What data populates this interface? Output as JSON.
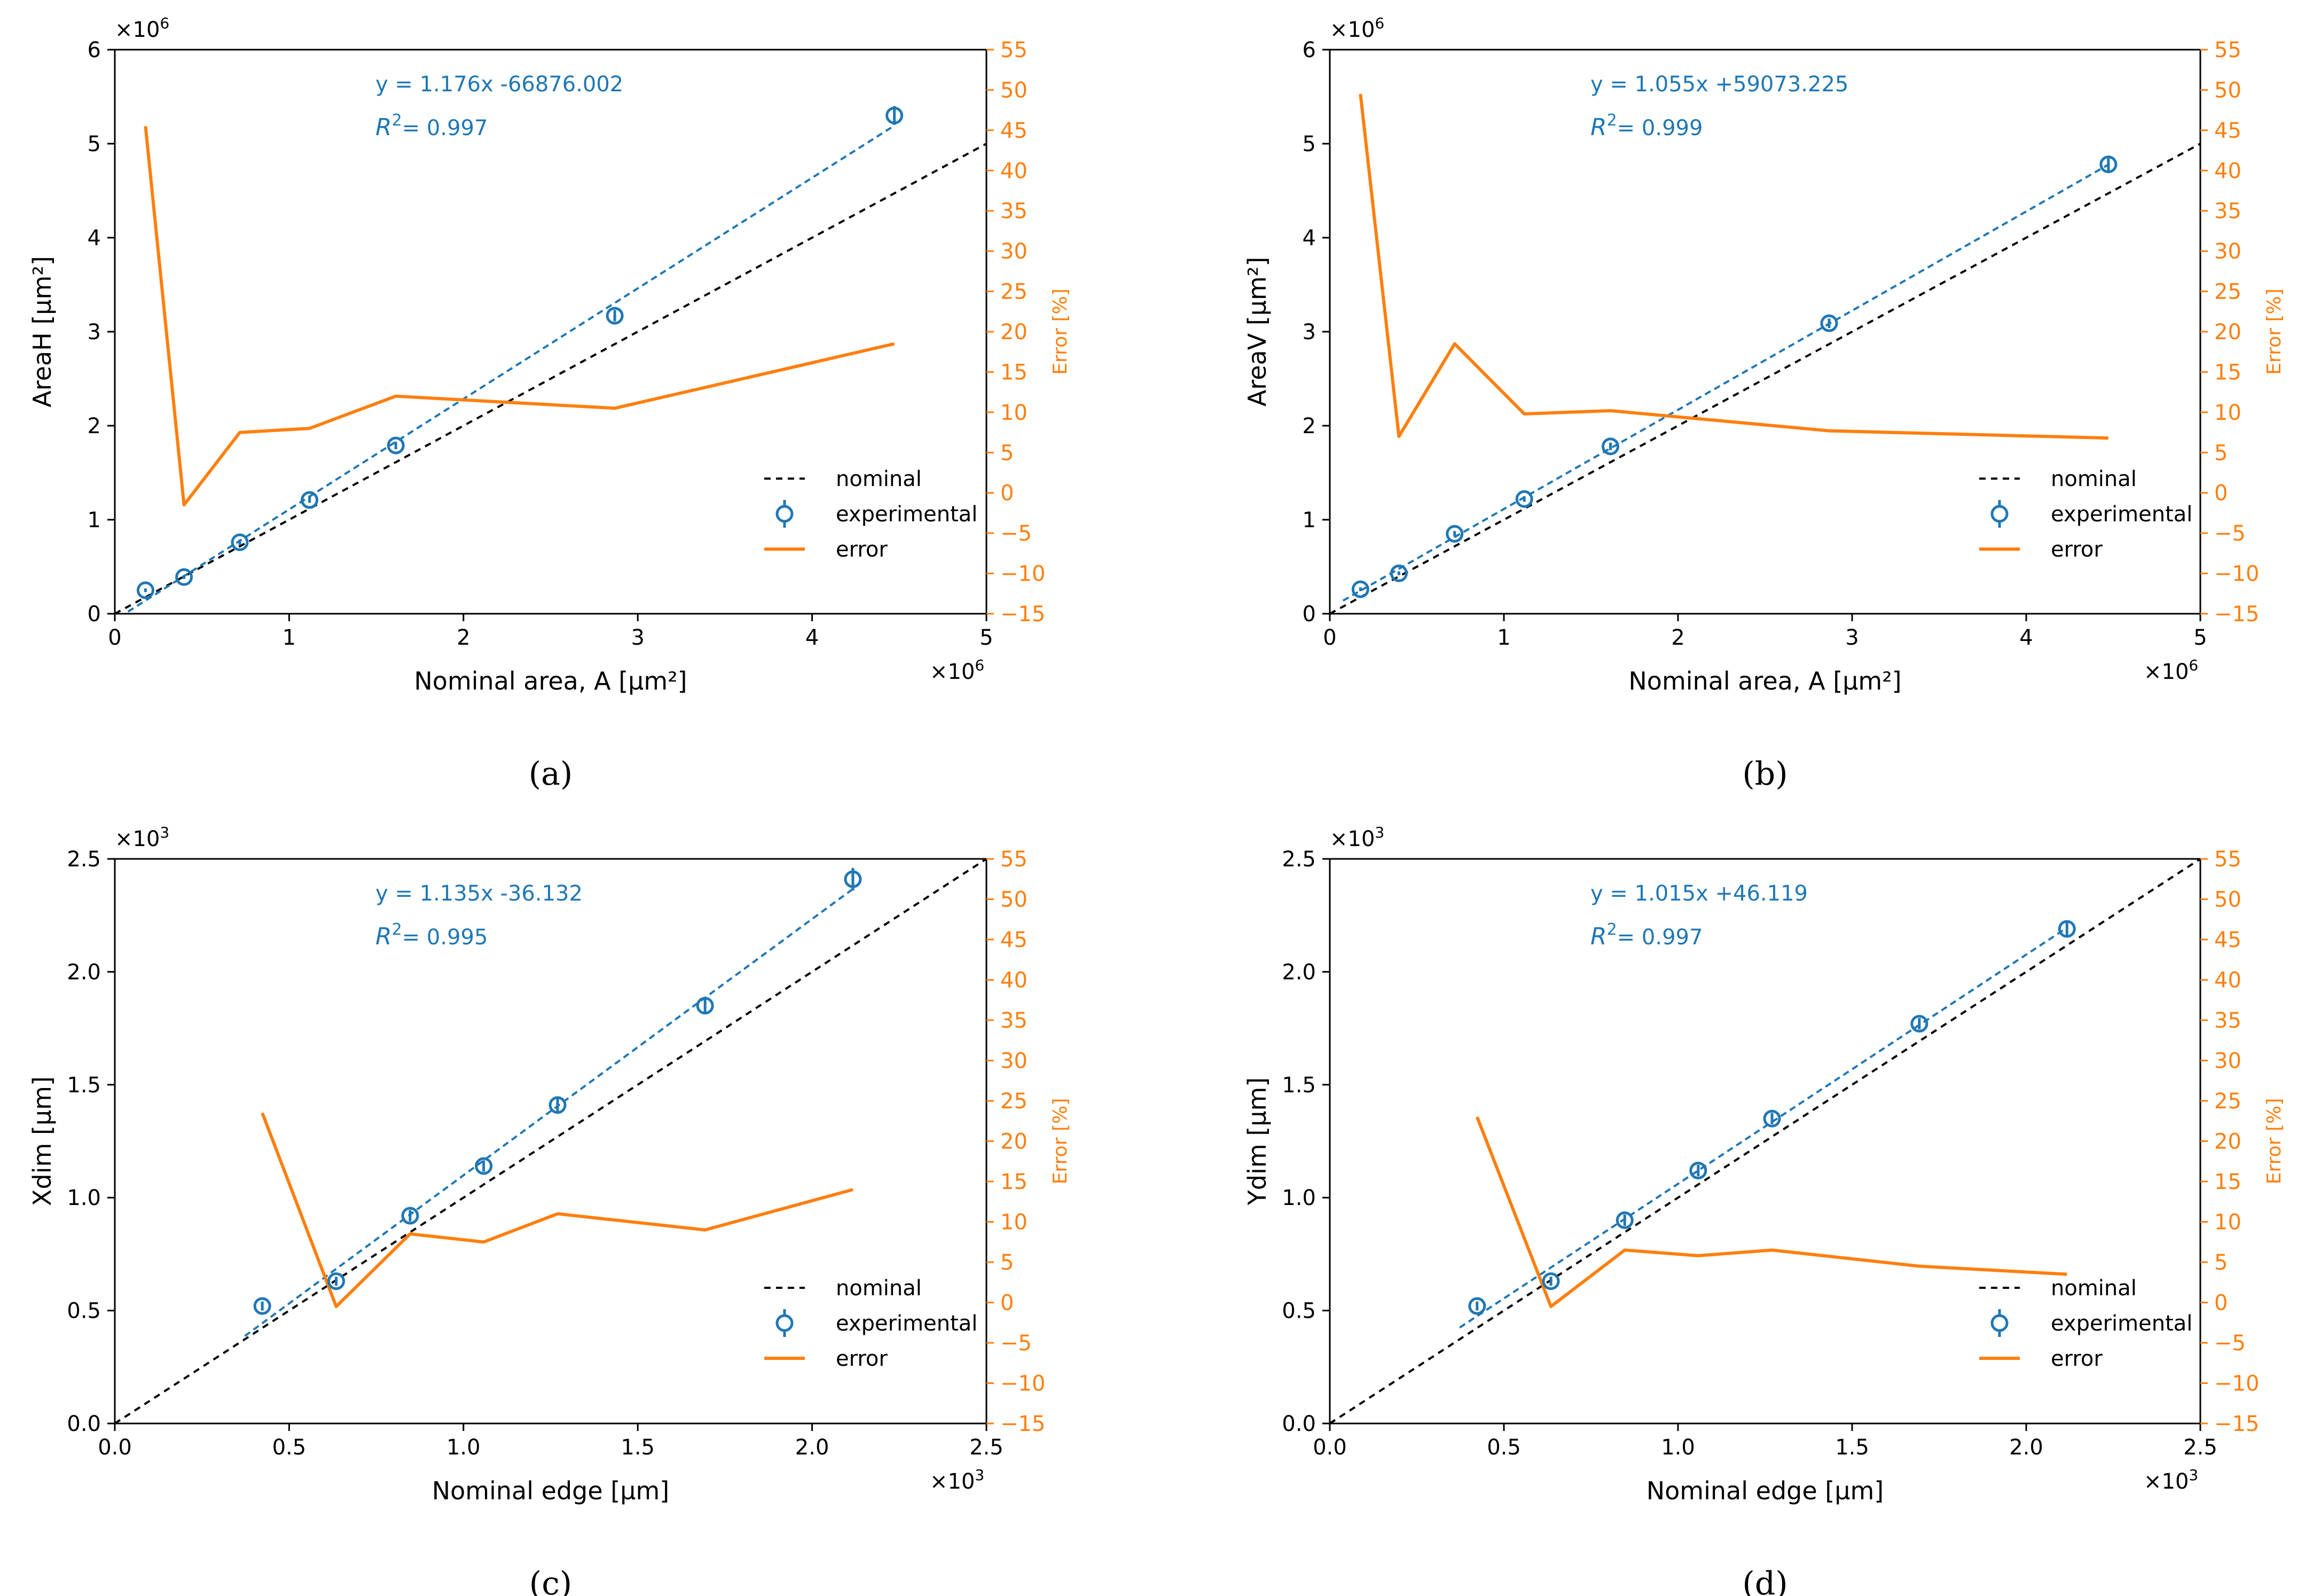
{
  "colors": {
    "nominal": "#000000",
    "experimental": "#1f77b4",
    "error": "#ff7f0e",
    "axis": "#000000"
  },
  "legend_labels": [
    "nominal",
    "experimental",
    "error"
  ],
  "chart_data": [
    {
      "type": "line",
      "caption": "(a)",
      "x_exp_label": "×10",
      "x_exp_power": "6",
      "y_exp_label": "×10",
      "y_exp_power": "6",
      "xlabel": "Nominal area, A [μm²]",
      "ylabel": "AreaH [μm²]",
      "y2label": "Error [%]",
      "xlim": [
        0,
        5
      ],
      "ylim": [
        0,
        6
      ],
      "y2lim": [
        -15,
        55
      ],
      "xticks": [
        0,
        1,
        2,
        3,
        4,
        5
      ],
      "yticks": [
        0,
        1,
        2,
        3,
        4,
        5,
        6
      ],
      "y2ticks": [
        -15,
        -10,
        -5,
        0,
        5,
        10,
        15,
        20,
        25,
        30,
        35,
        40,
        45,
        50,
        55
      ],
      "equation": "y = 1.176x -66876.002",
      "r2": "= 0.997",
      "fit": {
        "slope": 1.176,
        "intercept": -0.066876
      },
      "legend_position": "lower-right",
      "series": [
        {
          "name": "nominal",
          "style": "dashed",
          "x": [
            0,
            5
          ],
          "y": [
            0,
            5
          ]
        },
        {
          "name": "experimental",
          "style": "markers-errorbar",
          "x": [
            0.176,
            0.397,
            0.717,
            1.117,
            1.612,
            2.868,
            4.472
          ],
          "y": [
            0.25,
            0.39,
            0.76,
            1.21,
            1.79,
            3.17,
            5.3
          ],
          "yerr": [
            0.02,
            0.02,
            0.03,
            0.03,
            0.04,
            0.06,
            0.1
          ]
        },
        {
          "name": "error",
          "axis": "right",
          "x": [
            0.176,
            0.397,
            0.717,
            1.117,
            1.612,
            2.868,
            4.472
          ],
          "y": [
            45.5,
            -1.5,
            7.5,
            8.0,
            12.0,
            10.5,
            18.5
          ]
        }
      ]
    },
    {
      "type": "line",
      "caption": "(b)",
      "x_exp_label": "×10",
      "x_exp_power": "6",
      "y_exp_label": "×10",
      "y_exp_power": "6",
      "xlabel": "Nominal area, A [μm²]",
      "ylabel": "AreaV [μm²]",
      "y2label": "Error [%]",
      "xlim": [
        0,
        5
      ],
      "ylim": [
        0,
        6
      ],
      "y2lim": [
        -15,
        55
      ],
      "xticks": [
        0,
        1,
        2,
        3,
        4,
        5
      ],
      "yticks": [
        0,
        1,
        2,
        3,
        4,
        5,
        6
      ],
      "y2ticks": [
        -15,
        -10,
        -5,
        0,
        5,
        10,
        15,
        20,
        25,
        30,
        35,
        40,
        45,
        50,
        55
      ],
      "equation": "y = 1.055x +59073.225",
      "r2": "= 0.999",
      "fit": {
        "slope": 1.055,
        "intercept": 0.059073
      },
      "legend_position": "lower-right",
      "series": [
        {
          "name": "nominal",
          "style": "dashed",
          "x": [
            0,
            5
          ],
          "y": [
            0,
            5
          ]
        },
        {
          "name": "experimental",
          "style": "markers-errorbar",
          "x": [
            0.176,
            0.397,
            0.717,
            1.117,
            1.612,
            2.868,
            4.472
          ],
          "y": [
            0.26,
            0.43,
            0.85,
            1.22,
            1.78,
            3.09,
            4.78
          ],
          "yerr": [
            0.02,
            0.02,
            0.03,
            0.03,
            0.04,
            0.05,
            0.08
          ]
        },
        {
          "name": "error",
          "axis": "right",
          "x": [
            0.176,
            0.397,
            0.717,
            1.117,
            1.612,
            2.868,
            4.472
          ],
          "y": [
            49.5,
            7.0,
            18.5,
            9.8,
            10.2,
            7.7,
            6.8
          ]
        }
      ]
    },
    {
      "type": "line",
      "caption": "(c)",
      "x_exp_label": "×10",
      "x_exp_power": "3",
      "y_exp_label": "×10",
      "y_exp_power": "3",
      "xlabel": "Nominal edge [μm]",
      "ylabel": "Xdim [μm]",
      "y2label": "Error [%]",
      "xlim": [
        0,
        2.5
      ],
      "ylim": [
        0,
        2.5
      ],
      "y2lim": [
        -15,
        55
      ],
      "xticks": [
        0.0,
        0.5,
        1.0,
        1.5,
        2.0,
        2.5
      ],
      "yticks": [
        0.0,
        0.5,
        1.0,
        1.5,
        2.0,
        2.5
      ],
      "y2ticks": [
        -15,
        -10,
        -5,
        0,
        5,
        10,
        15,
        20,
        25,
        30,
        35,
        40,
        45,
        50,
        55
      ],
      "equation": "y = 1.135x -36.132",
      "r2": "= 0.995",
      "fit": {
        "slope": 1.135,
        "intercept": -0.036132
      },
      "legend_position": "lower-right",
      "series": [
        {
          "name": "nominal",
          "style": "dashed",
          "x": [
            0,
            2.5
          ],
          "y": [
            0,
            2.5
          ]
        },
        {
          "name": "experimental",
          "style": "markers-errorbar",
          "x": [
            0.423,
            0.635,
            0.847,
            1.058,
            1.27,
            1.693,
            2.117
          ],
          "y": [
            0.52,
            0.63,
            0.92,
            1.14,
            1.41,
            1.85,
            2.41
          ],
          "yerr": [
            0.02,
            0.02,
            0.025,
            0.025,
            0.03,
            0.03,
            0.05
          ]
        },
        {
          "name": "error",
          "axis": "right",
          "x": [
            0.423,
            0.635,
            0.847,
            1.058,
            1.27,
            1.693,
            2.117
          ],
          "y": [
            23.5,
            -0.5,
            8.5,
            7.5,
            11.0,
            9.0,
            14.0
          ]
        }
      ]
    },
    {
      "type": "line",
      "caption": "(d)",
      "x_exp_label": "×10",
      "x_exp_power": "3",
      "y_exp_label": "×10",
      "y_exp_power": "3",
      "xlabel": "Nominal edge [μm]",
      "ylabel": "Ydim [μm]",
      "y2label": "Error [%]",
      "xlim": [
        0,
        2.5
      ],
      "ylim": [
        0,
        2.5
      ],
      "y2lim": [
        -15,
        55
      ],
      "xticks": [
        0.0,
        0.5,
        1.0,
        1.5,
        2.0,
        2.5
      ],
      "yticks": [
        0.0,
        0.5,
        1.0,
        1.5,
        2.0,
        2.5
      ],
      "y2ticks": [
        -15,
        -10,
        -5,
        0,
        5,
        10,
        15,
        20,
        25,
        30,
        35,
        40,
        45,
        50,
        55
      ],
      "equation": "y = 1.015x +46.119",
      "r2": "= 0.997",
      "fit": {
        "slope": 1.015,
        "intercept": 0.046119
      },
      "legend_position": "lower-right",
      "series": [
        {
          "name": "nominal",
          "style": "dashed",
          "x": [
            0,
            2.5
          ],
          "y": [
            0,
            2.5
          ]
        },
        {
          "name": "experimental",
          "style": "markers-errorbar",
          "x": [
            0.423,
            0.635,
            0.847,
            1.058,
            1.27,
            1.693,
            2.117
          ],
          "y": [
            0.52,
            0.63,
            0.9,
            1.12,
            1.35,
            1.77,
            2.19
          ],
          "yerr": [
            0.02,
            0.02,
            0.025,
            0.025,
            0.025,
            0.025,
            0.03
          ]
        },
        {
          "name": "error",
          "axis": "right",
          "x": [
            0.423,
            0.635,
            0.847,
            1.058,
            1.27,
            1.693,
            2.117
          ],
          "y": [
            23.0,
            -0.5,
            6.5,
            5.8,
            6.5,
            4.5,
            3.5
          ]
        }
      ]
    }
  ]
}
